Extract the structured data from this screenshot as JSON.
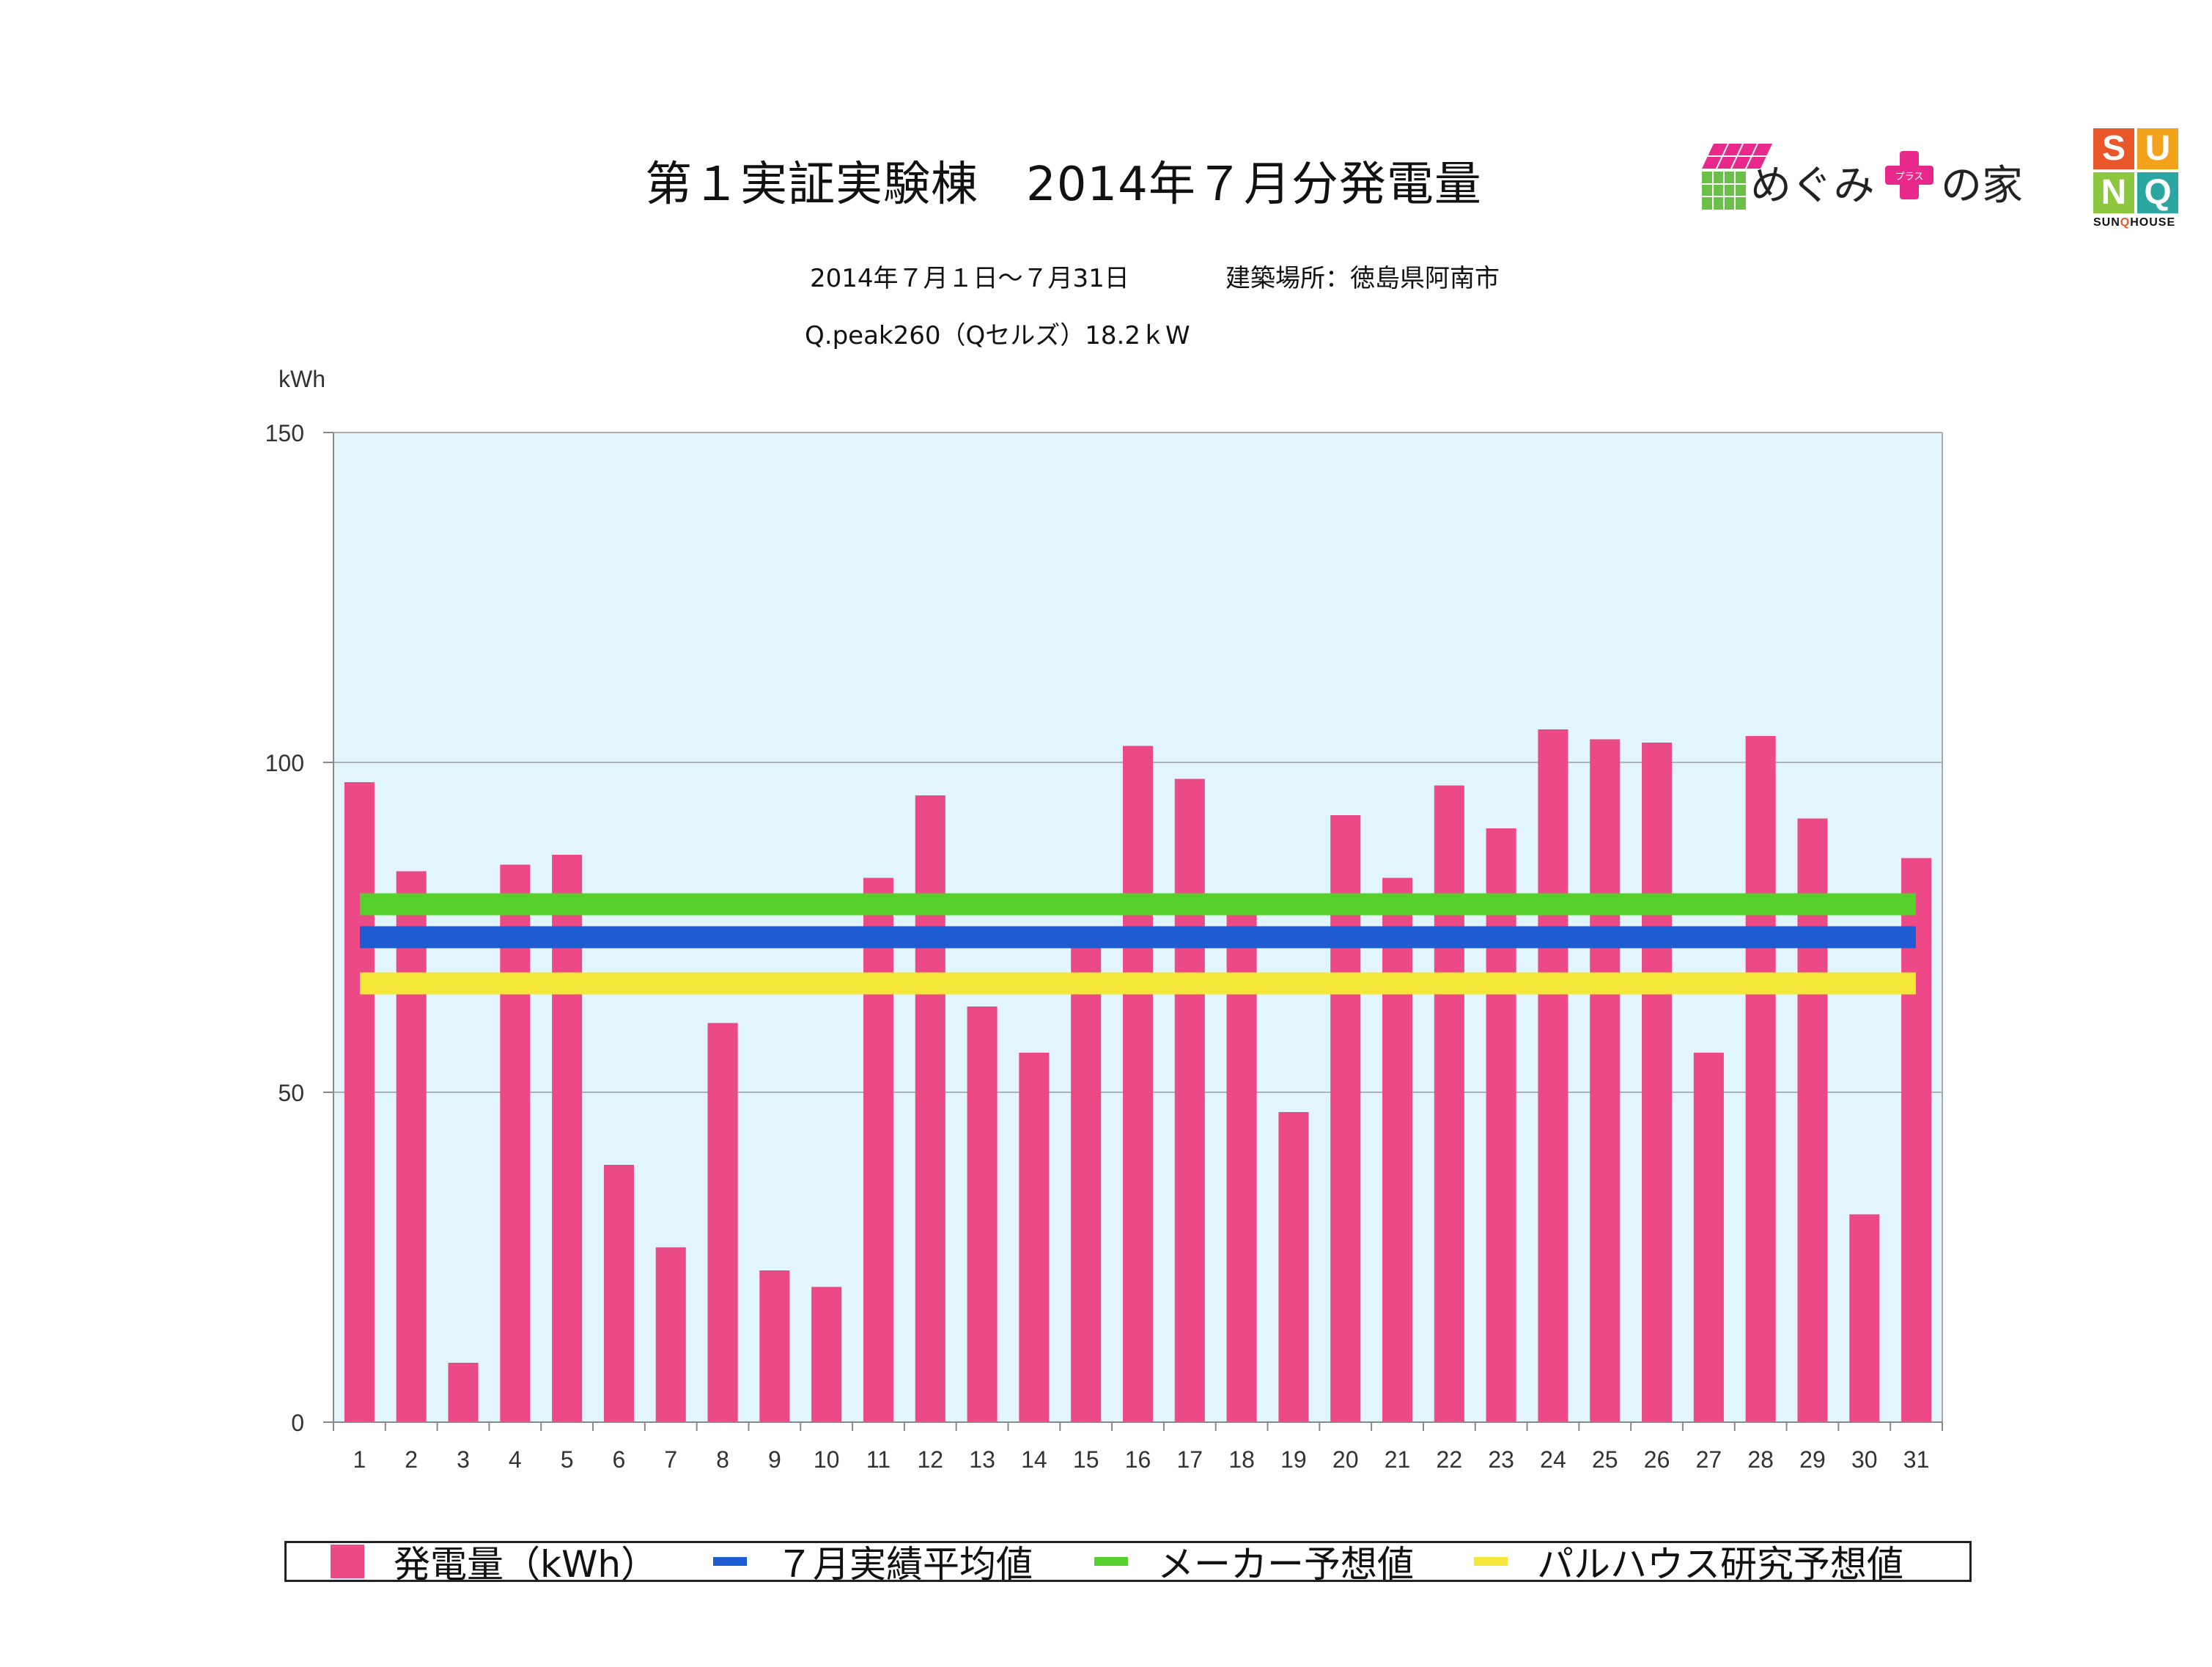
{
  "header": {
    "title": "第１実証実験棟　2014年７月分発電量",
    "period": "2014年７月１日〜７月31日",
    "location": "建築場所：徳島県阿南市",
    "panel": "Q.peak260（Qセルズ）18.2ｋW"
  },
  "logos": {
    "megumi": {
      "text_left": "めぐみ",
      "text_right": "の家",
      "plus_label": "プラス"
    },
    "sunq": {
      "letters": [
        "S",
        "U",
        "N",
        "Q"
      ],
      "caption_pre": "SUN",
      "caption_q": "Q",
      "caption_post": "HOUSE"
    }
  },
  "chart_data": {
    "type": "bar",
    "ylabel": "kWh",
    "xlabel": "",
    "ylim": [
      0,
      150
    ],
    "yticks": [
      0,
      50,
      100,
      150
    ],
    "grid": true,
    "legend_position": "bottom",
    "categories": [
      "1",
      "2",
      "3",
      "4",
      "5",
      "6",
      "7",
      "8",
      "9",
      "10",
      "11",
      "12",
      "13",
      "14",
      "15",
      "16",
      "17",
      "18",
      "19",
      "20",
      "21",
      "22",
      "23",
      "24",
      "25",
      "26",
      "27",
      "28",
      "29",
      "30",
      "31"
    ],
    "series": [
      {
        "name": "発電量（kWh）",
        "color": "#ec4a86",
        "values": [
          97,
          83.5,
          9,
          84.5,
          86,
          39,
          26.5,
          60.5,
          23,
          20.5,
          82.5,
          95,
          63,
          56,
          72,
          102.5,
          97.5,
          77,
          47,
          92,
          82.5,
          96.5,
          90,
          105,
          103.5,
          103,
          56,
          104,
          91.5,
          31.5,
          85.5
        ]
      }
    ],
    "reference_lines": [
      {
        "name": "７月実績平均値",
        "value": 73.5,
        "color": "#1f5bd1"
      },
      {
        "name": "メーカー予想値",
        "value": 78.5,
        "color": "#57d02e"
      },
      {
        "name": "パルハウス研究予想値",
        "value": 66.5,
        "color": "#f5e63a"
      }
    ],
    "plot_background": "#e2f5fc"
  },
  "legend": {
    "items": [
      {
        "label": "発電量（kWh）",
        "kind": "box",
        "color": "#ec4a86"
      },
      {
        "label": "７月実績平均値",
        "kind": "line",
        "color": "#1f5bd1"
      },
      {
        "label": "メーカー予想値",
        "kind": "line",
        "color": "#57d02e"
      },
      {
        "label": "パルハウス研究予想値",
        "kind": "line",
        "color": "#f5e63a"
      }
    ]
  }
}
